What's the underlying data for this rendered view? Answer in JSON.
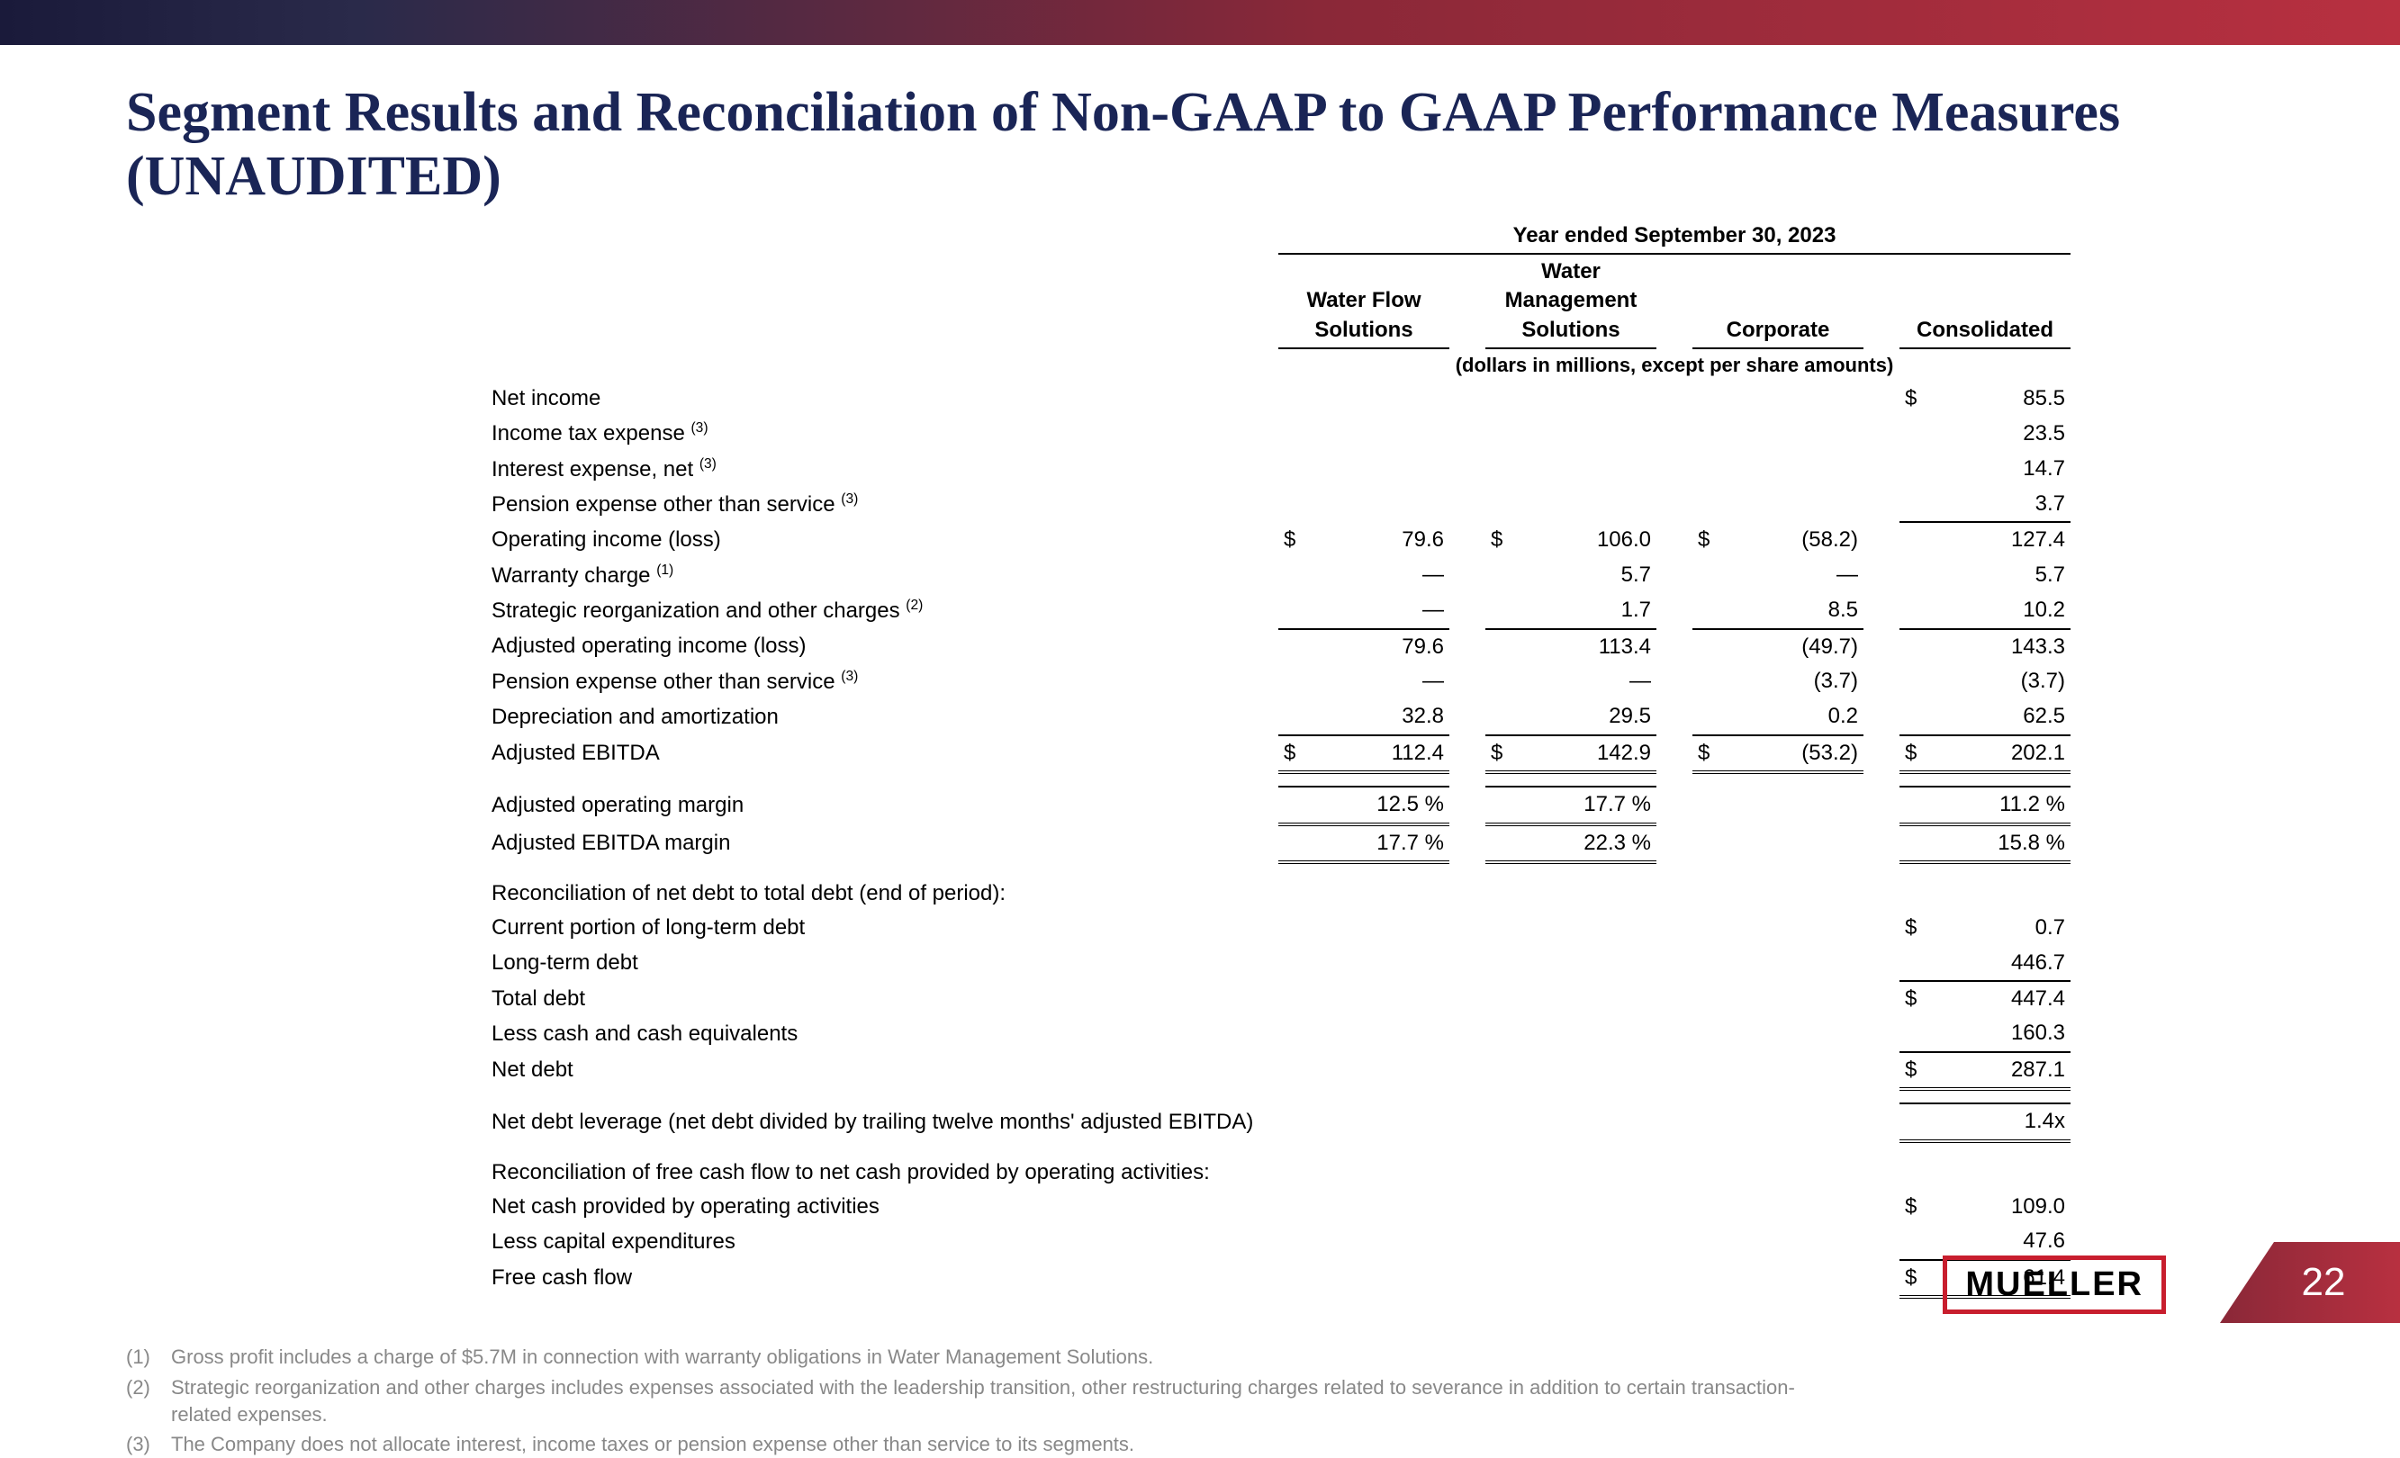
{
  "page": {
    "title": "Segment Results and Reconciliation of Non-GAAP to GAAP Performance Measures (UNAUDITED)",
    "number": "22",
    "logo_text": "MUELLER"
  },
  "table": {
    "period": "Year ended September 30, 2023",
    "columns": [
      "Water Flow Solutions",
      "Water Management Solutions",
      "Corporate",
      "Consolidated"
    ],
    "units": "(dollars in millions, except per share amounts)",
    "rows": {
      "net_income": {
        "label": "Net income",
        "ind": 0,
        "sup": "",
        "vals": [
          null,
          null,
          null,
          "85.5"
        ],
        "syms": [
          null,
          null,
          null,
          "$"
        ]
      },
      "tax": {
        "label": "Income tax expense",
        "ind": 0,
        "sup": "(3)",
        "vals": [
          null,
          null,
          null,
          "23.5"
        ]
      },
      "interest": {
        "label": "Interest expense, net",
        "ind": 0,
        "sup": "(3)",
        "vals": [
          null,
          null,
          null,
          "14.7"
        ]
      },
      "pension1": {
        "label": "Pension expense other than service",
        "ind": 0,
        "sup": "(3)",
        "vals": [
          null,
          null,
          null,
          "3.7"
        ]
      },
      "op_income": {
        "label": "Operating income (loss)",
        "ind": 1,
        "vals": [
          "79.6",
          "106.0",
          "(58.2)",
          "127.4"
        ],
        "syms": [
          "$",
          "$",
          "$",
          ""
        ],
        "bt": [
          false,
          false,
          false,
          true
        ]
      },
      "warranty": {
        "label": "Warranty charge",
        "ind": 1,
        "sup": "(1)",
        "vals": [
          "—",
          "5.7",
          "—",
          "5.7"
        ]
      },
      "strategic": {
        "label": "Strategic reorganization and other charges",
        "ind": 1,
        "sup": "(2)",
        "vals": [
          "—",
          "1.7",
          "8.5",
          "10.2"
        ]
      },
      "adj_op": {
        "label": "Adjusted operating income (loss)",
        "ind": 2,
        "vals": [
          "79.6",
          "113.4",
          "(49.7)",
          "143.3"
        ],
        "bt": [
          true,
          true,
          true,
          true
        ]
      },
      "pension2": {
        "label": "Pension expense other than service",
        "ind": 2,
        "sup": "(3)",
        "vals": [
          "—",
          "—",
          "(3.7)",
          "(3.7)"
        ]
      },
      "da": {
        "label": "Depreciation and amortization",
        "ind": 2,
        "vals": [
          "32.8",
          "29.5",
          "0.2",
          "62.5"
        ]
      },
      "adj_ebitda": {
        "label": "Adjusted EBITDA",
        "ind": 3,
        "vals": [
          "112.4",
          "142.9",
          "(53.2)",
          "202.1"
        ],
        "syms": [
          "$",
          "$",
          "$",
          "$"
        ],
        "dbl": true,
        "bt": [
          true,
          true,
          true,
          true
        ]
      },
      "adj_op_margin": {
        "label": "Adjusted operating margin",
        "ind": 1,
        "vals": [
          "12.5 %",
          "17.7 %",
          null,
          "11.2 %"
        ],
        "dbl": true
      },
      "adj_ebitda_margin": {
        "label": "Adjusted EBITDA margin",
        "ind": 1,
        "vals": [
          "17.7 %",
          "22.3 %",
          null,
          "15.8 %"
        ],
        "dbl": true
      },
      "recon_debt_hdr": {
        "label": "Reconciliation of net debt to total debt (end of period):",
        "ind": 0
      },
      "cur_lt_debt": {
        "label": "Current portion of long-term debt",
        "ind": 1,
        "vals": [
          null,
          null,
          null,
          "0.7"
        ],
        "syms": [
          null,
          null,
          null,
          "$"
        ]
      },
      "lt_debt": {
        "label": "Long-term debt",
        "ind": 1,
        "vals": [
          null,
          null,
          null,
          "446.7"
        ]
      },
      "total_debt": {
        "label": "Total debt",
        "ind": 1,
        "vals": [
          null,
          null,
          null,
          "447.4"
        ],
        "syms": [
          null,
          null,
          null,
          "$"
        ],
        "bt": [
          false,
          false,
          false,
          true
        ]
      },
      "less_cash": {
        "label": "Less cash and cash equivalents",
        "ind": 2,
        "vals": [
          null,
          null,
          null,
          "160.3"
        ]
      },
      "net_debt": {
        "label": "Net debt",
        "ind": 3,
        "vals": [
          null,
          null,
          null,
          "287.1"
        ],
        "syms": [
          null,
          null,
          null,
          "$"
        ],
        "dbl": true,
        "bt": [
          false,
          false,
          false,
          true
        ]
      },
      "leverage": {
        "label": "Net debt leverage (net debt divided by trailing twelve months' adjusted EBITDA)",
        "ind": 0,
        "vals": [
          null,
          null,
          null,
          "1.4x"
        ],
        "dbl": true
      },
      "recon_fcf_hdr": {
        "label": "Reconciliation of free cash flow to net cash provided by operating activities:",
        "ind": 0
      },
      "op_cash": {
        "label": "Net cash provided by operating activities",
        "ind": 1,
        "vals": [
          null,
          null,
          null,
          "109.0"
        ],
        "syms": [
          null,
          null,
          null,
          "$"
        ]
      },
      "capex": {
        "label": "Less capital expenditures",
        "ind": 1,
        "vals": [
          null,
          null,
          null,
          "47.6"
        ]
      },
      "fcf": {
        "label": "Free cash flow",
        "ind": 2,
        "vals": [
          null,
          null,
          null,
          "61.4"
        ],
        "syms": [
          null,
          null,
          null,
          "$"
        ],
        "dbl": true,
        "bt": [
          false,
          false,
          false,
          true
        ]
      }
    }
  },
  "footnotes": [
    {
      "num": "(1)",
      "text": "Gross profit includes a charge of $5.7M in connection with warranty obligations in Water Management Solutions."
    },
    {
      "num": "(2)",
      "text": "Strategic reorganization and other charges includes expenses associated with the leadership transition, other restructuring charges related to severance in addition to certain transaction-related expenses."
    },
    {
      "num": "(3)",
      "text": "The Company does not allocate interest, income taxes or pension expense other than service to its segments."
    }
  ],
  "colors": {
    "title": "#1a2556",
    "brand_red": "#c81e2e",
    "footer_grey": "#888888",
    "bar_grad_start": "#1a1a3a",
    "bar_grad_end": "#b83040"
  }
}
